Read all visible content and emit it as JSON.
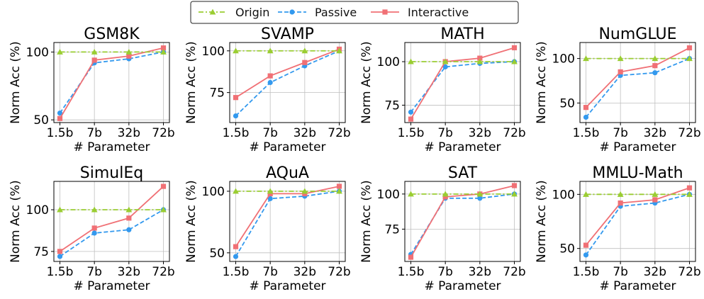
{
  "legend": {
    "placement": "top-center",
    "entries": [
      {
        "label": "Origin",
        "color": "#9acd32",
        "marker": "triangle",
        "dash": "dashdot"
      },
      {
        "label": "Passive",
        "color": "#3399ee",
        "marker": "circle",
        "dash": "dashed"
      },
      {
        "label": "Interactive",
        "color": "#f07075",
        "marker": "square",
        "dash": "solid"
      }
    ]
  },
  "chart_data": [
    {
      "type": "line",
      "title": "GSM8K",
      "xlabel": "# Parameter",
      "ylabel": "Norm Acc (%)",
      "categories": [
        "1.5b",
        "7b",
        "32b",
        "72b"
      ],
      "ylim": [
        48,
        107
      ],
      "yticks": [
        50,
        100
      ],
      "grid": true,
      "series": [
        {
          "name": "Origin",
          "values": [
            100,
            100,
            100,
            100
          ]
        },
        {
          "name": "Passive",
          "values": [
            55,
            92,
            95,
            100
          ]
        },
        {
          "name": "Interactive",
          "values": [
            51,
            94,
            97,
            103
          ]
        }
      ]
    },
    {
      "type": "line",
      "title": "SVAMP",
      "xlabel": "# Parameter",
      "ylabel": "Norm Acc (%)",
      "categories": [
        "1.5b",
        "7b",
        "32b",
        "72b"
      ],
      "ylim": [
        57,
        105
      ],
      "yticks": [
        75,
        100
      ],
      "grid": true,
      "series": [
        {
          "name": "Origin",
          "values": [
            100,
            100,
            100,
            100
          ]
        },
        {
          "name": "Passive",
          "values": [
            61,
            81,
            91,
            100
          ]
        },
        {
          "name": "Interactive",
          "values": [
            72,
            85,
            93,
            101
          ]
        }
      ]
    },
    {
      "type": "line",
      "title": "MATH",
      "xlabel": "# Parameter",
      "ylabel": "Norm Acc (%)",
      "categories": [
        "1.5b",
        "7b",
        "32b",
        "72b"
      ],
      "ylim": [
        65,
        111
      ],
      "yticks": [
        75,
        100
      ],
      "grid": true,
      "series": [
        {
          "name": "Origin",
          "values": [
            100,
            100,
            100,
            100
          ]
        },
        {
          "name": "Passive",
          "values": [
            71,
            97,
            99,
            100
          ]
        },
        {
          "name": "Interactive",
          "values": [
            67,
            100,
            102,
            108
          ]
        }
      ]
    },
    {
      "type": "line",
      "title": "NumGLUE",
      "xlabel": "# Parameter",
      "ylabel": "Norm Acc (%)",
      "categories": [
        "1.5b",
        "7b",
        "32b",
        "72b"
      ],
      "ylim": [
        28,
        118
      ],
      "yticks": [
        50,
        100
      ],
      "grid": true,
      "series": [
        {
          "name": "Origin",
          "values": [
            100,
            100,
            100,
            100
          ]
        },
        {
          "name": "Passive",
          "values": [
            34,
            81,
            84,
            100
          ]
        },
        {
          "name": "Interactive",
          "values": [
            45,
            85,
            92,
            112
          ]
        }
      ]
    },
    {
      "type": "line",
      "title": "SimulEq",
      "xlabel": "# Parameter",
      "ylabel": "Norm Acc (%)",
      "categories": [
        "1.5b",
        "7b",
        "32b",
        "72b"
      ],
      "ylim": [
        69,
        117
      ],
      "yticks": [
        75,
        100
      ],
      "grid": true,
      "series": [
        {
          "name": "Origin",
          "values": [
            100,
            100,
            100,
            100
          ]
        },
        {
          "name": "Passive",
          "values": [
            72,
            86,
            88,
            100
          ]
        },
        {
          "name": "Interactive",
          "values": [
            75,
            89,
            95,
            114
          ]
        }
      ]
    },
    {
      "type": "line",
      "title": "AQuA",
      "xlabel": "# Parameter",
      "ylabel": "Norm Acc (%)",
      "categories": [
        "1.5b",
        "7b",
        "32b",
        "72b"
      ],
      "ylim": [
        43,
        108
      ],
      "yticks": [
        50,
        100
      ],
      "grid": true,
      "series": [
        {
          "name": "Origin",
          "values": [
            100,
            100,
            100,
            100
          ]
        },
        {
          "name": "Passive",
          "values": [
            47,
            94,
            96,
            100
          ]
        },
        {
          "name": "Interactive",
          "values": [
            55,
            98,
            98,
            104
          ]
        }
      ]
    },
    {
      "type": "line",
      "title": "SAT",
      "xlabel": "# Parameter",
      "ylabel": "Norm Acc (%)",
      "categories": [
        "1.5b",
        "7b",
        "32b",
        "72b"
      ],
      "ylim": [
        52,
        109
      ],
      "yticks": [
        75,
        100
      ],
      "grid": true,
      "series": [
        {
          "name": "Origin",
          "values": [
            100,
            100,
            100,
            100
          ]
        },
        {
          "name": "Passive",
          "values": [
            57,
            97,
            97,
            100
          ]
        },
        {
          "name": "Interactive",
          "values": [
            55,
            98,
            100,
            106
          ]
        }
      ]
    },
    {
      "type": "line",
      "title": "MMLU-Math",
      "xlabel": "# Parameter",
      "ylabel": "Norm Acc (%)",
      "categories": [
        "1.5b",
        "7b",
        "32b",
        "72b"
      ],
      "ylim": [
        38,
        112
      ],
      "yticks": [
        50,
        100
      ],
      "grid": true,
      "series": [
        {
          "name": "Origin",
          "values": [
            100,
            100,
            100,
            100
          ]
        },
        {
          "name": "Passive",
          "values": [
            44,
            89,
            92,
            100
          ]
        },
        {
          "name": "Interactive",
          "values": [
            53,
            92,
            95,
            106
          ]
        }
      ]
    }
  ]
}
